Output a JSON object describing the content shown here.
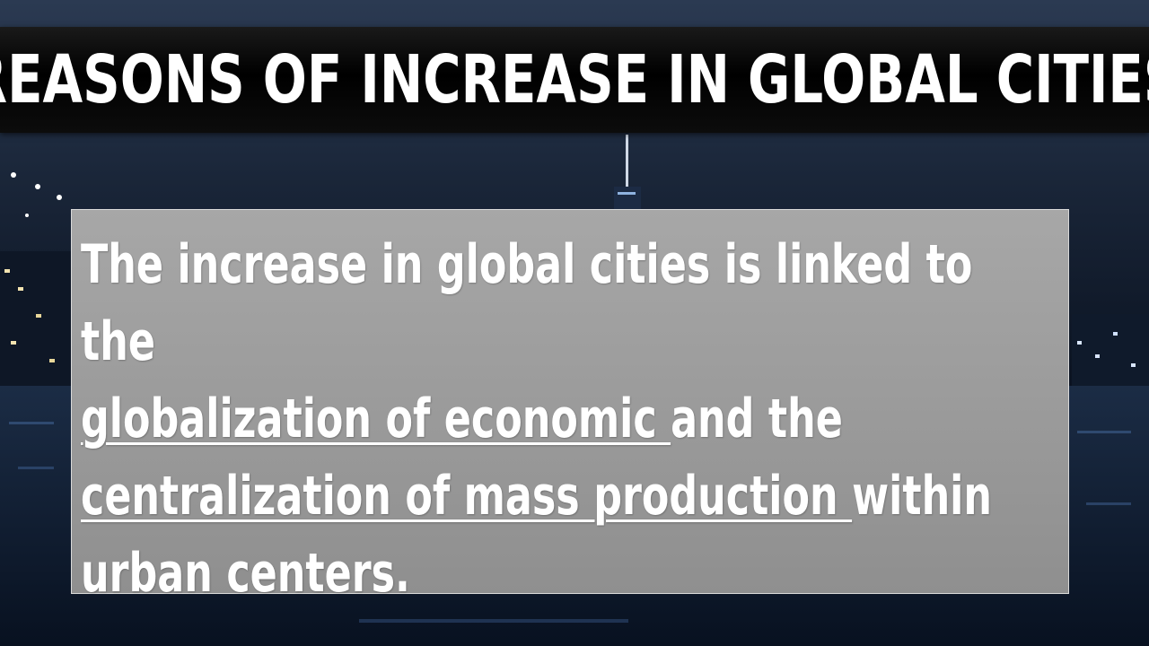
{
  "slide": {
    "title": "REASONS OF INCREASE IN GLOBAL CITIES",
    "body": {
      "line1": "The increase in global cities is linked to the",
      "seg_u1": "globalization of economic ",
      "seg_2": "and the",
      "seg_u2": "centralization of mass production ",
      "seg_3": "within",
      "line4": "urban centers."
    }
  },
  "colors": {
    "title_bar": "#000000",
    "title_text": "#ffffff",
    "content_box": "#9e9e9e",
    "content_text": "#ffffff"
  }
}
